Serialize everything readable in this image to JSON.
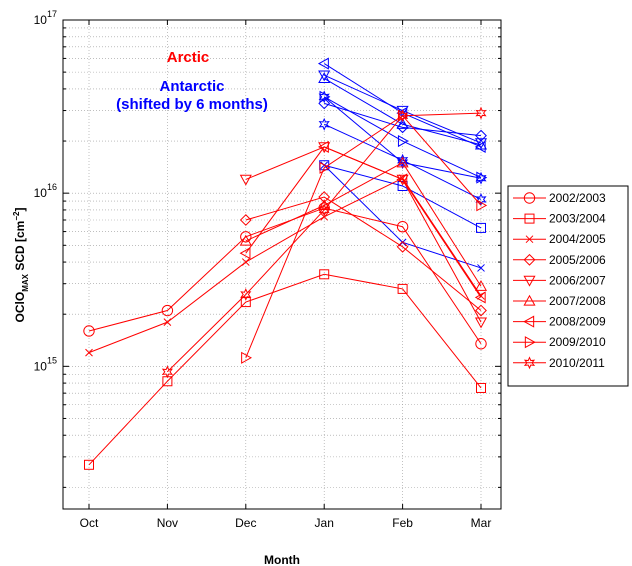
{
  "chart_data": {
    "type": "line",
    "xlabel": "Month",
    "ylabel": "OClO",
    "ylabel_sub": "MAX",
    "ylabel_unit": " SCD [cm",
    "ylabel_sup": "−2",
    "ylabel_close": "]",
    "yscale": "log",
    "ylim": [
      150000000000000.0,
      1e+17
    ],
    "y_ticks": [
      {
        "value": 1000000000000000.0,
        "base": "10",
        "exp": "15"
      },
      {
        "value": 1e+16,
        "base": "10",
        "exp": "16"
      },
      {
        "value": 1e+17,
        "base": "10",
        "exp": "17"
      }
    ],
    "categories": [
      "Oct",
      "Nov",
      "Dec",
      "Jan",
      "Feb",
      "Mar"
    ],
    "grid": true,
    "legend_position": "right",
    "annotations": [
      {
        "text": "Arctic",
        "color": "#ff0000"
      },
      {
        "text": "Antarctic",
        "color": "#0000ff"
      },
      {
        "text": "(shifted by 6 months)",
        "color": "#0000ff"
      }
    ],
    "colors": {
      "arctic": "#ff0000",
      "antarctic": "#0000ff"
    },
    "series": [
      {
        "name": "2002/2003",
        "marker": "circle",
        "values": [
          1600000000000000.0,
          2100000000000000.0,
          5600000000000000.0,
          8200000000000000.0,
          6400000000000000.0,
          1350000000000000.0
        ]
      },
      {
        "name": "2003/2004",
        "marker": "square",
        "values": [
          270000000000000.0,
          820000000000000.0,
          2350000000000000.0,
          3400000000000000.0,
          2800000000000000.0,
          750000000000000.0
        ]
      },
      {
        "name": "2004/2005",
        "marker": "x",
        "values": [
          1200000000000000.0,
          1800000000000000.0,
          4000000000000000.0,
          7300000000000000.0,
          1.22e+16,
          2550000000000000.0
        ]
      },
      {
        "name": "2005/2006",
        "marker": "diamond",
        "values": [
          null,
          null,
          7000000000000000.0,
          9500000000000000.0,
          4900000000000000.0,
          2100000000000000.0
        ]
      },
      {
        "name": "2006/2007",
        "marker": "triangle-down",
        "values": [
          null,
          null,
          1.2e+16,
          1.85e+16,
          1.2e+16,
          1800000000000000.0
        ]
      },
      {
        "name": "2007/2008",
        "marker": "triangle-up",
        "values": [
          null,
          null,
          5300000000000000.0,
          8500000000000000.0,
          1.5e+16,
          2900000000000000.0
        ]
      },
      {
        "name": "2008/2009",
        "marker": "triangle-left",
        "values": [
          null,
          null,
          4500000000000000.0,
          1.85e+16,
          1.2e+16,
          2500000000000000.0
        ]
      },
      {
        "name": "2009/2010",
        "marker": "triangle-right",
        "values": [
          null,
          null,
          1120000000000000.0,
          1.4e+16,
          2.8e+16,
          8500000000000000.0
        ]
      },
      {
        "name": "2010/2011",
        "marker": "hexagram",
        "values": [
          null,
          930000000000000.0,
          2600000000000000.0,
          8000000000000000.0,
          2.8e+16,
          2.9e+16
        ]
      }
    ],
    "antarctic_series": [
      {
        "marker": "triangle-left",
        "values": [
          null,
          null,
          null,
          5.6e+16,
          2.9e+16,
          1.85e+16
        ]
      },
      {
        "marker": "triangle-down",
        "values": [
          null,
          null,
          null,
          4.8e+16,
          3e+16,
          1.95e+16
        ]
      },
      {
        "marker": "triangle-up",
        "values": [
          null,
          null,
          null,
          4.6e+16,
          2.5e+16,
          1.9e+16
        ]
      },
      {
        "marker": "diamond",
        "values": [
          null,
          null,
          null,
          3.3e+16,
          2.4e+16,
          2.15e+16
        ]
      },
      {
        "marker": "hexagram",
        "values": [
          null,
          null,
          null,
          3.6e+16,
          1.5e+16,
          1.22e+16
        ]
      },
      {
        "marker": "triangle-right",
        "values": [
          null,
          null,
          null,
          3.6e+16,
          2e+16,
          1.23e+16
        ]
      },
      {
        "marker": "hexagram",
        "values": [
          null,
          null,
          null,
          2.5e+16,
          1.55e+16,
          9200000000000000.0
        ]
      },
      {
        "marker": "square",
        "values": [
          null,
          null,
          null,
          1.45e+16,
          1.1e+16,
          6300000000000000.0
        ]
      },
      {
        "marker": "x",
        "values": [
          null,
          null,
          null,
          1.45e+16,
          5200000000000000.0,
          3700000000000000.0
        ]
      }
    ]
  }
}
